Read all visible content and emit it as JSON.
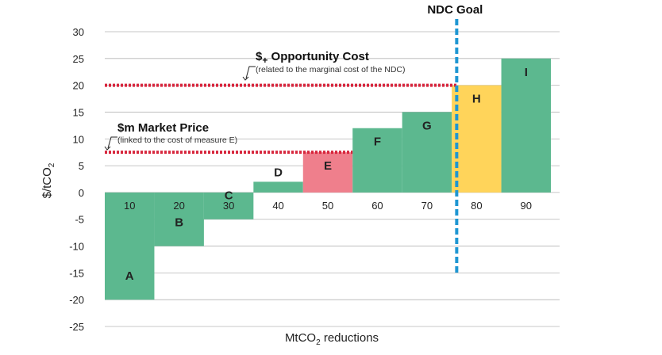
{
  "chart_data": {
    "type": "bar",
    "subtype": "marginal-abatement-cost-curve",
    "xlabel": "MtCO₂ reductions",
    "ylabel": "$/tCO₂",
    "ylim": [
      -25,
      30
    ],
    "xlim": [
      0,
      90
    ],
    "yticks": [
      30,
      25,
      20,
      15,
      10,
      5,
      0,
      -5,
      -10,
      -15,
      -20,
      -25
    ],
    "xticks": [
      10,
      20,
      30,
      40,
      50,
      60,
      70,
      80,
      90
    ],
    "grid": true,
    "measures": [
      {
        "label": "A",
        "x_start": 0,
        "x_end": 10,
        "value": -20,
        "color": "#5cb88f"
      },
      {
        "label": "B",
        "x_start": 10,
        "x_end": 20,
        "value": -10,
        "color": "#5cb88f"
      },
      {
        "label": "C",
        "x_start": 20,
        "x_end": 30,
        "value": -5,
        "color": "#5cb88f"
      },
      {
        "label": "D",
        "x_start": 30,
        "x_end": 40,
        "value": 2,
        "color": "#5cb88f"
      },
      {
        "label": "E",
        "x_start": 40,
        "x_end": 50,
        "value": 7.5,
        "color": "#ef7f8c"
      },
      {
        "label": "F",
        "x_start": 50,
        "x_end": 60,
        "value": 12,
        "color": "#5cb88f"
      },
      {
        "label": "G",
        "x_start": 60,
        "x_end": 70,
        "value": 15,
        "color": "#5cb88f"
      },
      {
        "label": "H",
        "x_start": 70,
        "x_end": 80,
        "value": 20,
        "color": "#ffd45a"
      },
      {
        "label": "I",
        "x_start": 80,
        "x_end": 90,
        "value": 25,
        "color": "#5cb88f"
      }
    ],
    "ndc_goal": {
      "label": "NDC Goal",
      "x": 71,
      "color": "#1e96d2"
    },
    "opportunity_cost": {
      "value": 20,
      "x_end": 71,
      "color": "#d7263d",
      "title_symbol": "$",
      "title_sub": "+",
      "title_text": " Opportunity Cost",
      "subtitle": "(related to the marginal cost  of the NDC)"
    },
    "market_price": {
      "value": 7.5,
      "x_end": 50,
      "color": "#d7263d",
      "title_symbol": "$",
      "title_sub": "m",
      "title_text": " Market Price",
      "subtitle": "(linked to the cost of measure E)"
    }
  }
}
